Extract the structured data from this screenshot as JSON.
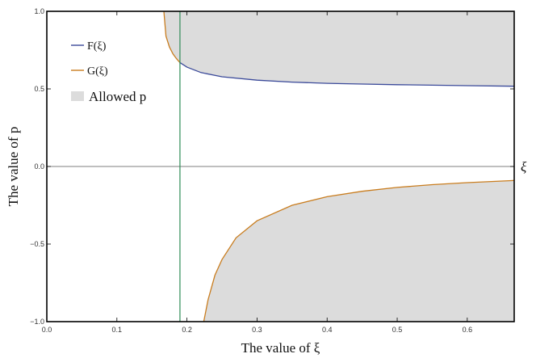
{
  "chart_data": {
    "type": "line",
    "xlabel": "The value of ξ",
    "ylabel": "The value of p",
    "xlim": [
      0.0,
      0.667
    ],
    "ylim": [
      -1.0,
      1.0
    ],
    "x_ticks": [
      "0.0",
      "0.1",
      "0.2",
      "0.3",
      "0.4",
      "0.5",
      "0.6"
    ],
    "y_ticks": [
      "−1.0",
      "−0.5",
      "0.0",
      "0.5",
      "1.0"
    ],
    "zero_axis_label": "ξ",
    "vertical_line_x": 0.19,
    "legend_position": "top-left",
    "series": [
      {
        "name": "F(ξ)",
        "color": "#3b4a9a",
        "x": [
          0.19,
          0.2,
          0.22,
          0.25,
          0.3,
          0.35,
          0.4,
          0.45,
          0.5,
          0.55,
          0.6,
          0.667
        ],
        "y": [
          0.67,
          0.64,
          0.605,
          0.578,
          0.556,
          0.544,
          0.536,
          0.531,
          0.527,
          0.524,
          0.521,
          0.517
        ]
      },
      {
        "name": "G(ξ)",
        "color": "#c97d1f",
        "branches": [
          {
            "x": [
              0.167,
              0.17,
              0.175,
              0.18,
              0.185,
              0.19
            ],
            "y": [
              1.0,
              0.84,
              0.77,
              0.725,
              0.695,
              0.67
            ]
          },
          {
            "x": [
              0.224,
              0.23,
              0.24,
              0.25,
              0.27,
              0.3,
              0.35,
              0.4,
              0.45,
              0.5,
              0.55,
              0.6,
              0.667
            ],
            "y": [
              -1.0,
              -0.86,
              -0.7,
              -0.6,
              -0.46,
              -0.35,
              -0.25,
              -0.195,
              -0.16,
              -0.135,
              -0.117,
              -0.104,
              -0.09
            ]
          }
        ]
      }
    ],
    "shaded_region": {
      "name": "Allowed p",
      "color": "#dcdcdc"
    },
    "legend": [
      {
        "label": "F(ξ)",
        "color": "#3b4a9a"
      },
      {
        "label": "G(ξ)",
        "color": "#c97d1f"
      },
      {
        "label": "Allowed p",
        "color": "#dcdcdc"
      }
    ],
    "vertical_line_color": "#2e8b57"
  }
}
